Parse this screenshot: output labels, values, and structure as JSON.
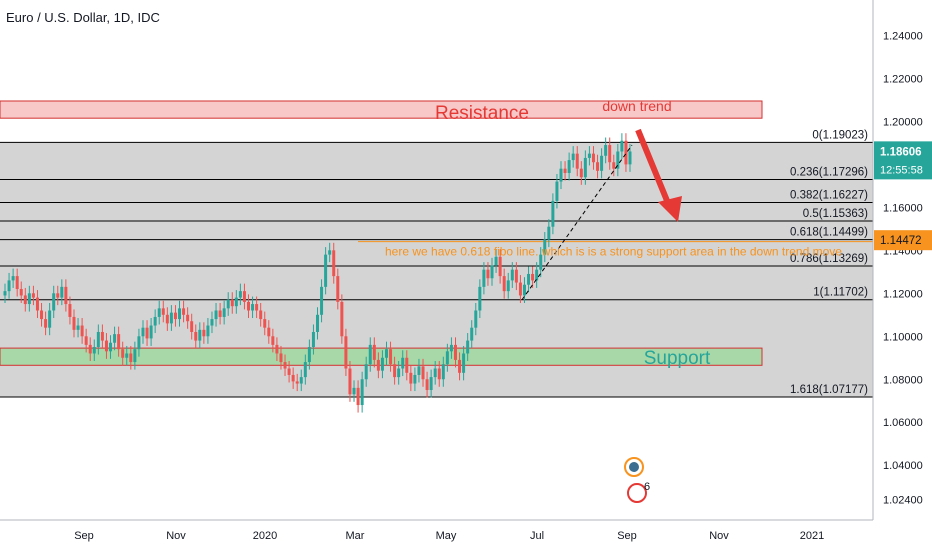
{
  "header": {
    "title": "Euro / U.S. Dollar, 1D, IDC"
  },
  "colors": {
    "up": "#26a69a",
    "down": "#ef5350",
    "fib_band": "#d4d4d4",
    "resistance_fill": "#f8c8c8",
    "support_fill": "#a8d8a8",
    "annotation_orange": "#f7931e",
    "price_badge": "#26a69a",
    "fib_price_badge": "#f7931e"
  },
  "chart_data": {
    "type": "candlestick",
    "xlabel": "",
    "ylabel": "",
    "ylim": [
      1.0145,
      1.2565
    ],
    "x_ticks": [
      "Sep",
      "Nov",
      "2020",
      "Mar",
      "May",
      "Jul",
      "Sep",
      "Nov",
      "2021"
    ],
    "y_ticks": [
      "1.24000",
      "1.22000",
      "1.20000",
      "1.18000",
      "1.16000",
      "1.14000",
      "1.12000",
      "1.10000",
      "1.08000",
      "1.06000",
      "1.04000",
      "1.02400"
    ],
    "last_price": "1.18606",
    "countdown": "12:55:58",
    "fib_price": "1.14472",
    "fib_levels": [
      {
        "label": "0(1.19023)",
        "value": 1.19023
      },
      {
        "label": "0.236(1.17296)",
        "value": 1.17296
      },
      {
        "label": "0.382(1.16227)",
        "value": 1.16227
      },
      {
        "label": "0.5(1.15363)",
        "value": 1.15363
      },
      {
        "label": "0.618(1.14499)",
        "value": 1.14499
      },
      {
        "label": "0.786(1.13269)",
        "value": 1.13269
      },
      {
        "label": "1(1.11702)",
        "value": 1.11702
      },
      {
        "label": "1.618(1.07177)",
        "value": 1.07177
      }
    ],
    "zones": {
      "resistance": {
        "label": "Resistance",
        "top": 1.2095,
        "bottom": 1.2015
      },
      "support": {
        "label": "Support",
        "top": 1.0945,
        "bottom": 1.0865
      }
    },
    "annotations": {
      "down_trend": "down trend",
      "fibo_note": "here we have 0.618 fibo line. which is is a strong support area in the down trend move"
    },
    "closes": [
      1.121,
      1.126,
      1.128,
      1.122,
      1.119,
      1.115,
      1.12,
      1.118,
      1.112,
      1.108,
      1.104,
      1.112,
      1.12,
      1.118,
      1.123,
      1.115,
      1.109,
      1.103,
      1.105,
      1.1,
      1.096,
      1.092,
      1.095,
      1.102,
      1.098,
      1.093,
      1.097,
      1.101,
      1.094,
      1.09,
      1.092,
      1.088,
      1.094,
      1.1,
      1.104,
      1.099,
      1.105,
      1.109,
      1.113,
      1.11,
      1.106,
      1.111,
      1.108,
      1.113,
      1.11,
      1.107,
      1.102,
      1.098,
      1.103,
      1.1,
      1.105,
      1.108,
      1.112,
      1.109,
      1.113,
      1.117,
      1.114,
      1.118,
      1.121,
      1.116,
      1.112,
      1.115,
      1.112,
      1.108,
      1.104,
      1.1,
      1.096,
      1.092,
      1.088,
      1.085,
      1.082,
      1.079,
      1.078,
      1.081,
      1.088,
      1.095,
      1.102,
      1.11,
      1.123,
      1.138,
      1.14,
      1.128,
      1.116,
      1.1,
      1.085,
      1.073,
      1.076,
      1.068,
      1.08,
      1.087,
      1.096,
      1.089,
      1.084,
      1.09,
      1.094,
      1.087,
      1.081,
      1.085,
      1.09,
      1.083,
      1.078,
      1.082,
      1.086,
      1.08,
      1.075,
      1.081,
      1.085,
      1.08,
      1.087,
      1.093,
      1.096,
      1.089,
      1.083,
      1.092,
      1.098,
      1.104,
      1.112,
      1.123,
      1.131,
      1.127,
      1.133,
      1.137,
      1.128,
      1.121,
      1.126,
      1.131,
      1.125,
      1.119,
      1.124,
      1.129,
      1.126,
      1.131,
      1.138,
      1.145,
      1.151,
      1.163,
      1.172,
      1.178,
      1.176,
      1.182,
      1.185,
      1.178,
      1.174,
      1.183,
      1.185,
      1.181,
      1.177,
      1.184,
      1.189,
      1.181,
      1.178,
      1.186,
      1.191,
      1.18,
      1.186
    ]
  }
}
